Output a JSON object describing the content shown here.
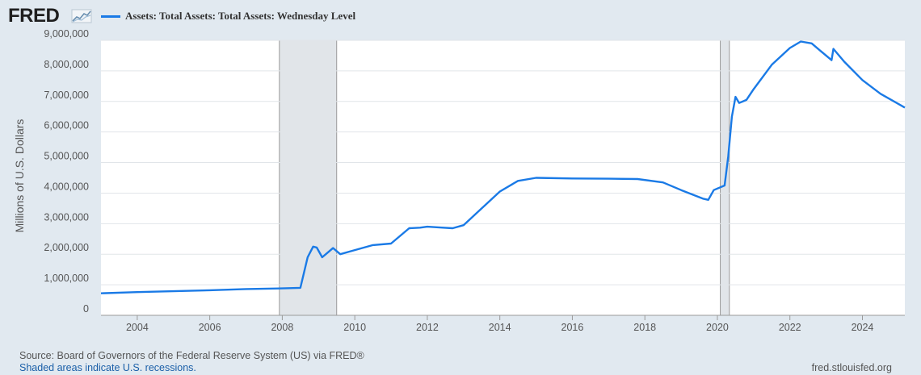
{
  "brand": {
    "name": "FRED"
  },
  "legend": {
    "label": "Assets: Total Assets: Total Assets: Wednesday Level",
    "color": "#1a7ae6"
  },
  "footer": {
    "source": "Source: Board of Governors of the Federal Reserve System (US) via FRED®",
    "note": "Shaded areas indicate U.S. recessions.",
    "site": "fred.stlouisfed.org"
  },
  "chart_data": {
    "type": "line",
    "ylabel": "Millions of U.S. Dollars",
    "xlim": [
      2003.0,
      2025.17
    ],
    "ylim": [
      0,
      9000000
    ],
    "x_ticks": [
      2004,
      2006,
      2008,
      2010,
      2012,
      2014,
      2016,
      2018,
      2020,
      2022,
      2024
    ],
    "x_tick_labels": [
      "2004",
      "2006",
      "2008",
      "2010",
      "2012",
      "2014",
      "2016",
      "2018",
      "2020",
      "2022",
      "2024"
    ],
    "y_ticks": [
      0,
      1000000,
      2000000,
      3000000,
      4000000,
      5000000,
      6000000,
      7000000,
      8000000,
      9000000
    ],
    "y_tick_labels": [
      "0",
      "1,000,000",
      "2,000,000",
      "3,000,000",
      "4,000,000",
      "5,000,000",
      "6,000,000",
      "7,000,000",
      "8,000,000",
      "9,000,000"
    ],
    "grid": "horizontal",
    "line_color": "#1a7ae6",
    "recessions": [
      [
        2007.92,
        2009.5
      ],
      [
        2020.08,
        2020.33
      ]
    ],
    "series": [
      {
        "name": "Assets: Total Assets: Total Assets: Wednesday Level",
        "x": [
          2003.0,
          2004.0,
          2005.0,
          2006.0,
          2007.0,
          2007.9,
          2008.5,
          2008.7,
          2008.85,
          2008.95,
          2009.1,
          2009.25,
          2009.4,
          2009.6,
          2009.9,
          2010.5,
          2011.0,
          2011.5,
          2011.8,
          2012.0,
          2012.3,
          2012.7,
          2013.0,
          2013.5,
          2014.0,
          2014.5,
          2015.0,
          2016.0,
          2017.0,
          2017.8,
          2018.5,
          2019.0,
          2019.6,
          2019.75,
          2019.9,
          2020.1,
          2020.2,
          2020.3,
          2020.4,
          2020.5,
          2020.6,
          2020.8,
          2021.0,
          2021.5,
          2022.0,
          2022.3,
          2022.6,
          2022.9,
          2023.15,
          2023.2,
          2023.5,
          2024.0,
          2024.5,
          2025.17
        ],
        "values": [
          720000,
          760000,
          790000,
          820000,
          860000,
          880000,
          900000,
          1900000,
          2250000,
          2220000,
          1900000,
          2050000,
          2200000,
          2000000,
          2100000,
          2300000,
          2350000,
          2850000,
          2870000,
          2900000,
          2880000,
          2850000,
          2950000,
          3500000,
          4050000,
          4400000,
          4500000,
          4480000,
          4470000,
          4460000,
          4350000,
          4100000,
          3820000,
          3780000,
          4100000,
          4200000,
          4250000,
          5200000,
          6500000,
          7150000,
          6950000,
          7050000,
          7400000,
          8200000,
          8750000,
          8960000,
          8900000,
          8600000,
          8350000,
          8720000,
          8300000,
          7700000,
          7250000,
          6800000
        ]
      }
    ]
  }
}
